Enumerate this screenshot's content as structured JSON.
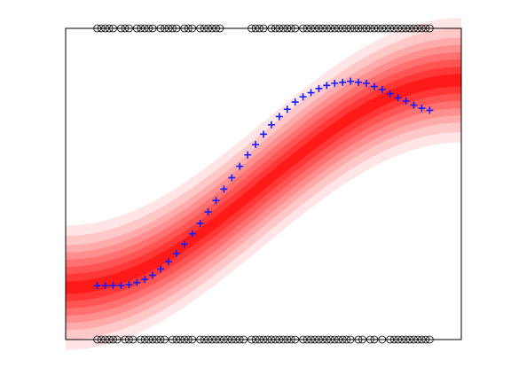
{
  "colors": {
    "band_outer": "#ffe5e5",
    "band_inner": "#ff1a1a",
    "points": "#1a1aff",
    "markers": "#000000",
    "axes": "#000000",
    "background": "#ffffff"
  },
  "chart_data": {
    "type": "scatter",
    "title": "",
    "xlabel": "",
    "ylabel": "",
    "xlim": [
      0,
      1
    ],
    "ylim": [
      -1.5,
      1.5
    ],
    "grid": false,
    "ticks": false,
    "legend": "none",
    "mean_function": "sin(pi*(x-0.5))",
    "band_levels": 8,
    "band_halfwidths": [
      0.06,
      0.13,
      0.2,
      0.27,
      0.34,
      0.41,
      0.5,
      0.6
    ],
    "series": [
      {
        "marker": "+",
        "x": [
          0.08,
          0.1,
          0.12,
          0.14,
          0.16,
          0.18,
          0.2,
          0.22,
          0.24,
          0.26,
          0.28,
          0.3,
          0.32,
          0.34,
          0.36,
          0.38,
          0.4,
          0.42,
          0.44,
          0.46,
          0.48,
          0.5,
          0.52,
          0.54,
          0.56,
          0.58,
          0.6,
          0.62,
          0.64,
          0.66,
          0.68,
          0.7,
          0.72,
          0.74,
          0.76,
          0.78,
          0.8,
          0.82,
          0.84,
          0.86,
          0.88,
          0.9,
          0.92
        ],
        "y": [
          -0.98,
          -0.98,
          -0.98,
          -0.98,
          -0.97,
          -0.95,
          -0.92,
          -0.88,
          -0.82,
          -0.75,
          -0.67,
          -0.58,
          -0.48,
          -0.38,
          -0.27,
          -0.16,
          -0.05,
          0.06,
          0.17,
          0.28,
          0.38,
          0.48,
          0.57,
          0.65,
          0.72,
          0.79,
          0.84,
          0.88,
          0.92,
          0.95,
          0.97,
          0.98,
          0.99,
          0.98,
          0.97,
          0.94,
          0.91,
          0.87,
          0.83,
          0.8,
          0.76,
          0.73,
          0.71
        ]
      }
    ],
    "rug_top_x": [
      0.08,
      0.09,
      0.1,
      0.11,
      0.12,
      0.14,
      0.15,
      0.16,
      0.18,
      0.19,
      0.2,
      0.21,
      0.22,
      0.24,
      0.25,
      0.26,
      0.27,
      0.28,
      0.3,
      0.31,
      0.32,
      0.34,
      0.35,
      0.36,
      0.37,
      0.38,
      0.39,
      0.47,
      0.48,
      0.49,
      0.5,
      0.52,
      0.53,
      0.54,
      0.55,
      0.56,
      0.57,
      0.58,
      0.6,
      0.61,
      0.62,
      0.63,
      0.64,
      0.65,
      0.66,
      0.67,
      0.68,
      0.69,
      0.7,
      0.71,
      0.72,
      0.73,
      0.74,
      0.75,
      0.76,
      0.77,
      0.78,
      0.79,
      0.8,
      0.81,
      0.82,
      0.83,
      0.84,
      0.85,
      0.86,
      0.87,
      0.88,
      0.89,
      0.9,
      0.91,
      0.92
    ],
    "rug_bottom_x": [
      0.08,
      0.09,
      0.1,
      0.11,
      0.12,
      0.13,
      0.15,
      0.16,
      0.17,
      0.19,
      0.2,
      0.21,
      0.22,
      0.23,
      0.24,
      0.25,
      0.27,
      0.28,
      0.29,
      0.3,
      0.31,
      0.32,
      0.34,
      0.35,
      0.36,
      0.37,
      0.38,
      0.39,
      0.4,
      0.41,
      0.42,
      0.43,
      0.44,
      0.45,
      0.47,
      0.48,
      0.49,
      0.5,
      0.51,
      0.52,
      0.53,
      0.54,
      0.55,
      0.56,
      0.57,
      0.58,
      0.6,
      0.61,
      0.62,
      0.63,
      0.64,
      0.65,
      0.66,
      0.67,
      0.68,
      0.69,
      0.7,
      0.71,
      0.72,
      0.74,
      0.75,
      0.77,
      0.78,
      0.8,
      0.82,
      0.83,
      0.84,
      0.85,
      0.86,
      0.87,
      0.88,
      0.89,
      0.9,
      0.91,
      0.92
    ]
  }
}
